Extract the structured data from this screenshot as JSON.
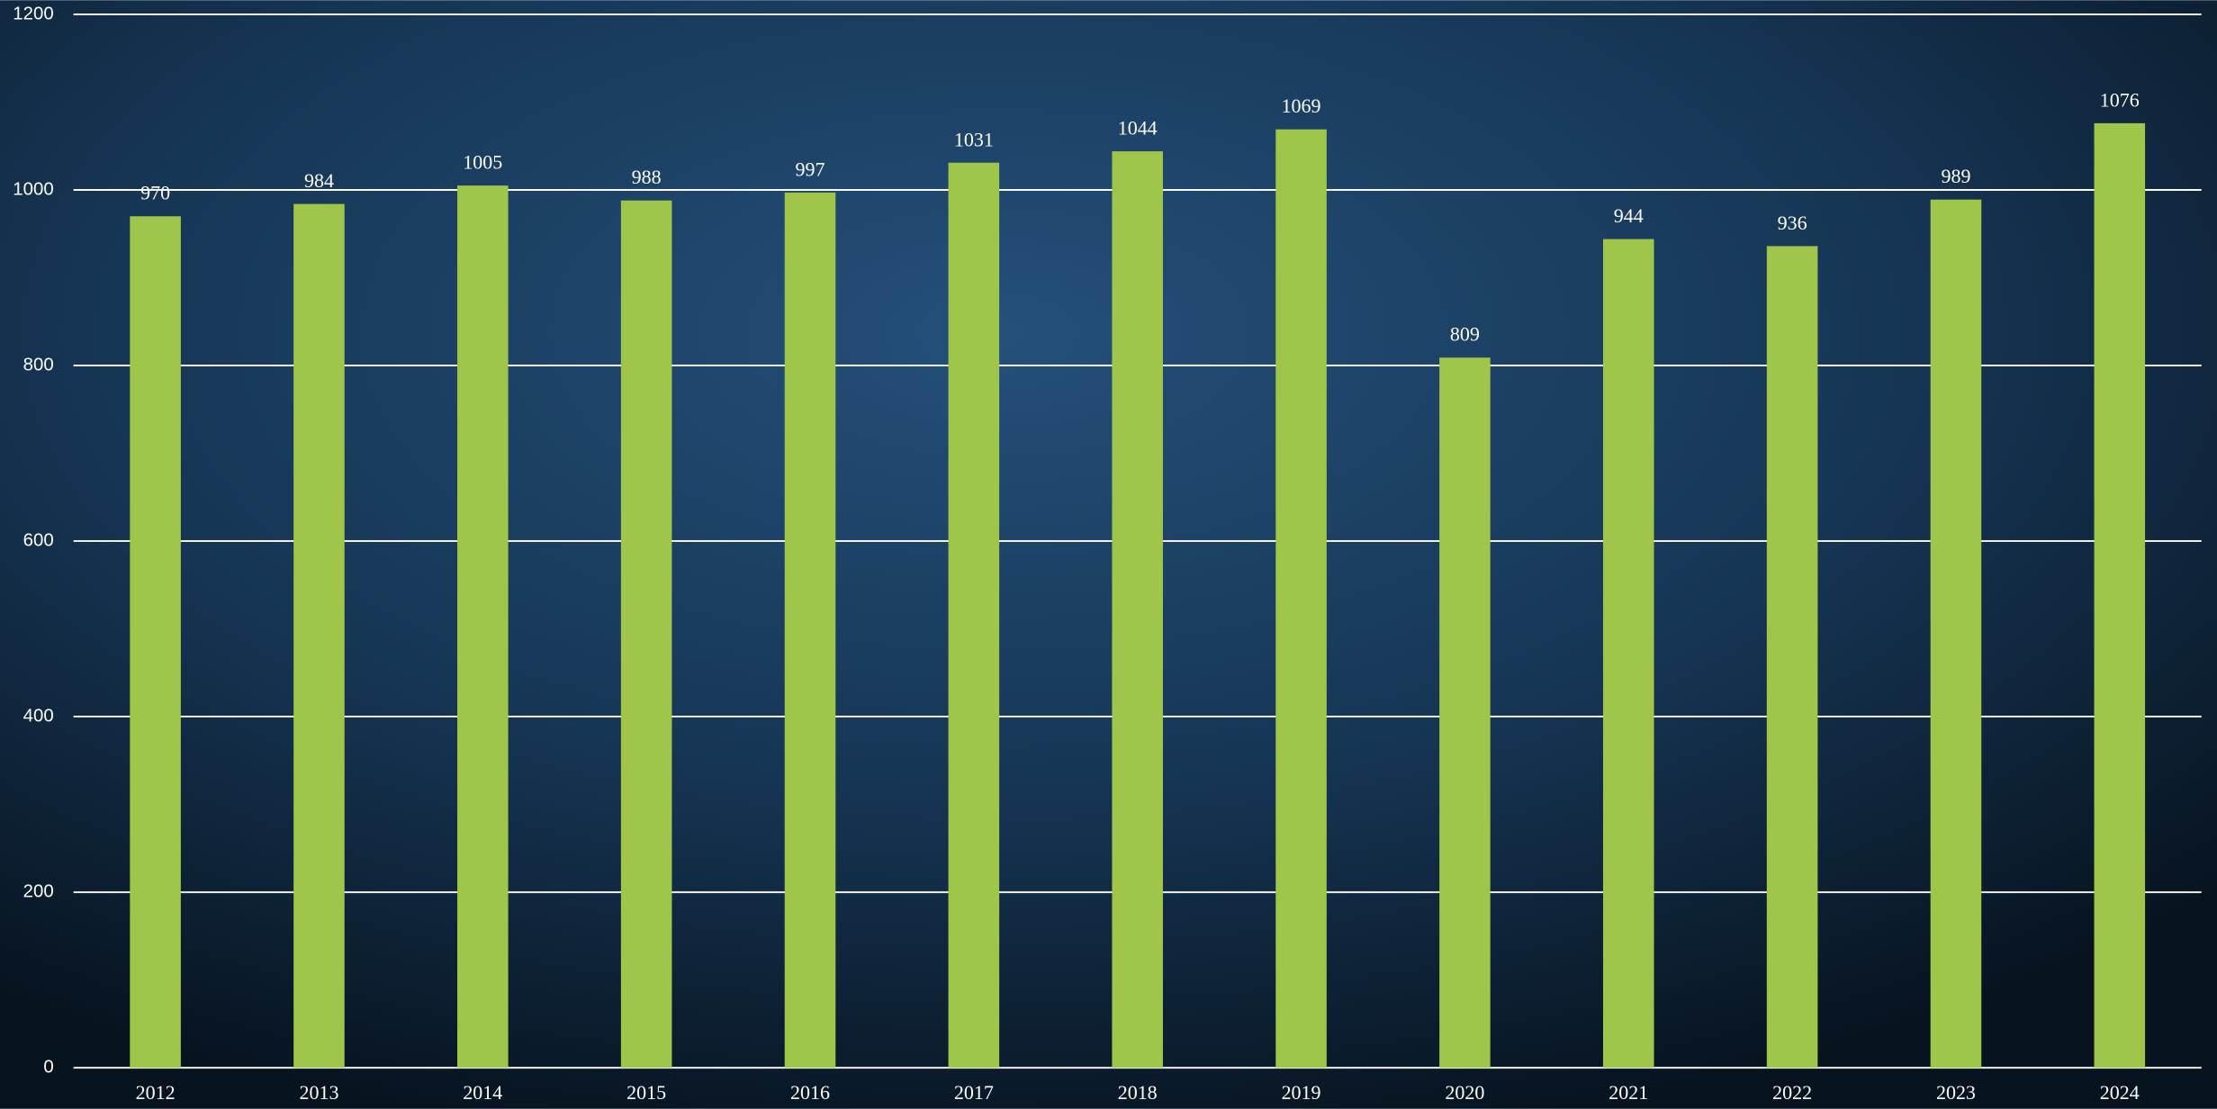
{
  "chart_data": {
    "type": "bar",
    "categories": [
      "2012",
      "2013",
      "2014",
      "2015",
      "2016",
      "2017",
      "2018",
      "2019",
      "2020",
      "2021",
      "2022",
      "2023",
      "2024"
    ],
    "values": [
      970,
      984,
      1005,
      988,
      997,
      1031,
      1044,
      1069,
      809,
      944,
      936,
      989,
      1076
    ],
    "color": "#9fc54a",
    "ylim": [
      0,
      1200
    ],
    "yticks": [
      0,
      200,
      400,
      600,
      800,
      1000,
      1200
    ],
    "grid": true,
    "data_labels": true
  }
}
